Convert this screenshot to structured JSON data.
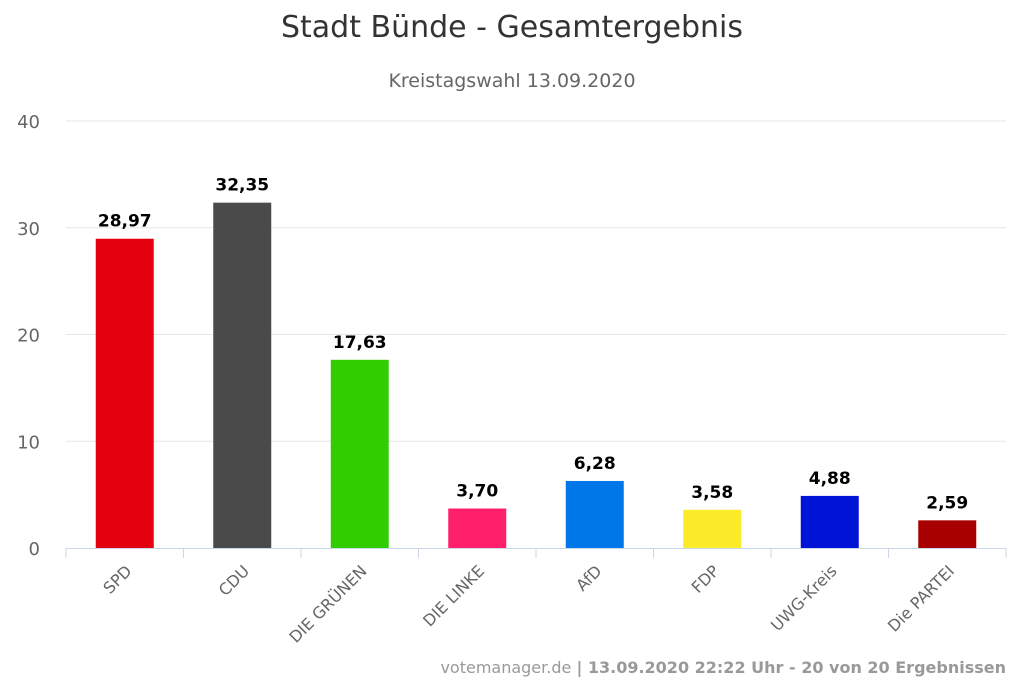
{
  "chart_data": {
    "type": "bar",
    "title": "Stadt Bünde - Gesamtergebnis",
    "subtitle": "Kreistagswahl 13.09.2020",
    "categories": [
      "SPD",
      "CDU",
      "DIE GRÜNEN",
      "DIE LINKE",
      "AfD",
      "FDP",
      "UWG-Kreis",
      "Die PARTEI"
    ],
    "values": [
      28.97,
      32.35,
      17.63,
      3.7,
      6.28,
      3.58,
      4.88,
      2.59
    ],
    "data_labels": [
      "28,97",
      "32,35",
      "17,63",
      "3,70",
      "6,28",
      "3,58",
      "4,88",
      "2,59"
    ],
    "colors": [
      "#e3000f",
      "#4a4a4a",
      "#32cd00",
      "#ff1f6a",
      "#0077e8",
      "#fbeb2b",
      "#0014d8",
      "#a80000"
    ],
    "ylim": [
      0,
      40
    ],
    "yticks": [
      0,
      10,
      20,
      30,
      40
    ],
    "grid": true,
    "xlabel": "",
    "ylabel": ""
  },
  "footer": {
    "source": "votemanager.de",
    "info": "| 13.09.2020 22:22 Uhr - 20 von 20 Ergebnissen"
  }
}
